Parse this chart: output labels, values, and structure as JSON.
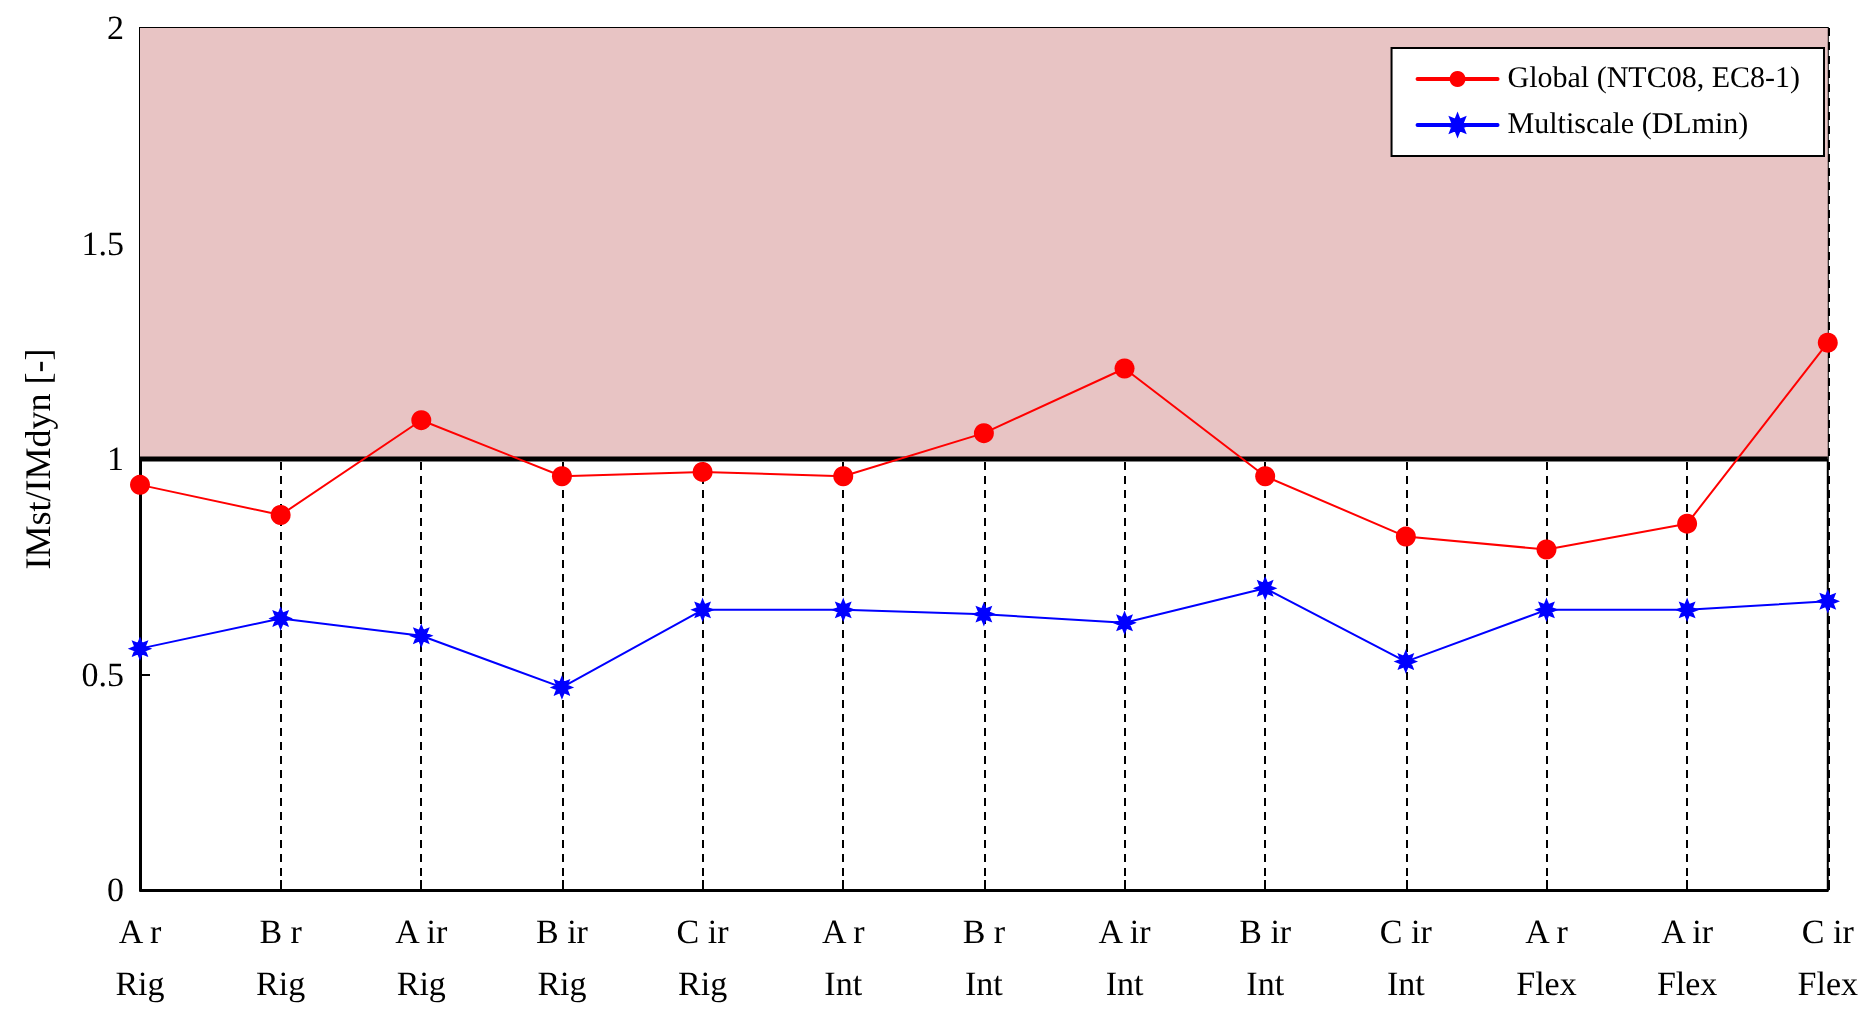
{
  "chart_data": {
    "type": "line",
    "ylabel": "IMst/IMdyn [-]",
    "categories": [
      "A r\nRig",
      "B r\nRig",
      "A ir\nRig",
      "B ir\nRig",
      "C ir\nRig",
      "A r\nInt",
      "B r\nInt",
      "A ir\nInt",
      "B ir\nInt",
      "C ir\nInt",
      "A r\nFlex",
      "A ir\nFlex",
      "C ir\nFlex"
    ],
    "series": [
      {
        "name": "Global (NTC08, EC8-1)",
        "color": "#ff0000",
        "marker": "circle",
        "values": [
          0.94,
          0.87,
          1.09,
          0.96,
          0.97,
          0.96,
          1.06,
          1.21,
          0.96,
          0.82,
          0.79,
          0.85,
          1.27
        ]
      },
      {
        "name": "Multiscale (DLmin)",
        "color": "#0000ff",
        "marker": "star",
        "values": [
          0.56,
          0.63,
          0.59,
          0.47,
          0.65,
          0.65,
          0.64,
          0.62,
          0.7,
          0.53,
          0.65,
          0.65,
          0.67
        ]
      }
    ],
    "ylim": [
      0,
      2
    ],
    "yticks": [
      0,
      0.5,
      1,
      1.5,
      2
    ],
    "grid": "x",
    "legend": "top right",
    "line_style": "solid",
    "ref_lines": [
      {
        "axis": "y",
        "value": 1,
        "color": "#000000"
      }
    ],
    "bands": [
      {
        "axis": "y",
        "from": 1,
        "to": 2,
        "color": "#e8c4c4"
      }
    ]
  }
}
